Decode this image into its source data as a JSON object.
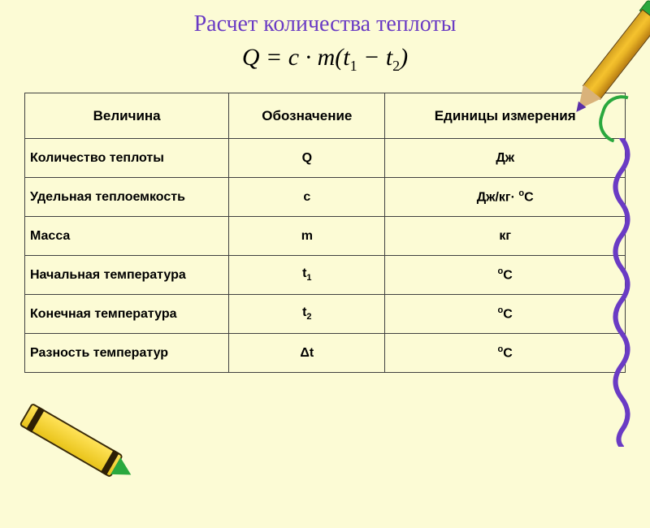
{
  "title": "Расчет количества теплоты",
  "formula": {
    "lhs": "Q",
    "eq": " = ",
    "c": "c",
    "dot": " · ",
    "m": "m",
    "open": "(",
    "t": "t",
    "s1": "1",
    "minus": " − ",
    "s2": "2",
    "close": ")"
  },
  "table": {
    "headers": [
      "Величина",
      "Обозначение",
      "Единицы измерения"
    ],
    "rows": [
      {
        "name": "Количество теплоты",
        "sym": {
          "txt": "Q"
        },
        "unit": {
          "txt": "Дж"
        }
      },
      {
        "name": "Удельная теплоемкость",
        "sym": {
          "txt": "c"
        },
        "unit": {
          "pre": "Дж/кг· ",
          "sup": "о",
          "post": "С"
        }
      },
      {
        "name": "Масса",
        "sym": {
          "txt": "m"
        },
        "unit": {
          "txt": "кг"
        }
      },
      {
        "name": "Начальная температура",
        "sym": {
          "pre": "t",
          "sub": "1"
        },
        "unit": {
          "sup": "о",
          "post": "С"
        }
      },
      {
        "name": "Конечная  температура",
        "sym": {
          "pre": "t",
          "sub": "2"
        },
        "unit": {
          "sup": "о",
          "post": "С"
        }
      },
      {
        "name": "Разность температур",
        "sym": {
          "pre": "Δt"
        },
        "unit": {
          "sup": "о",
          "post": "С"
        }
      }
    ],
    "col_widths_pct": [
      34,
      26,
      40
    ],
    "border_color": "#404040",
    "header_fontsize": 17,
    "cell_fontsize": 16
  },
  "colors": {
    "background": "#fcfbd5",
    "title": "#6a3bc4",
    "text": "#000000",
    "accent_green": "#2aa83e",
    "accent_yellow": "#f5c22e",
    "squiggle": "#6a3bc4"
  },
  "decor": {
    "pencil": "pencil-icon",
    "staple": "staple-icon",
    "squiggle": "squiggle-icon",
    "crayon": "crayon-icon"
  }
}
